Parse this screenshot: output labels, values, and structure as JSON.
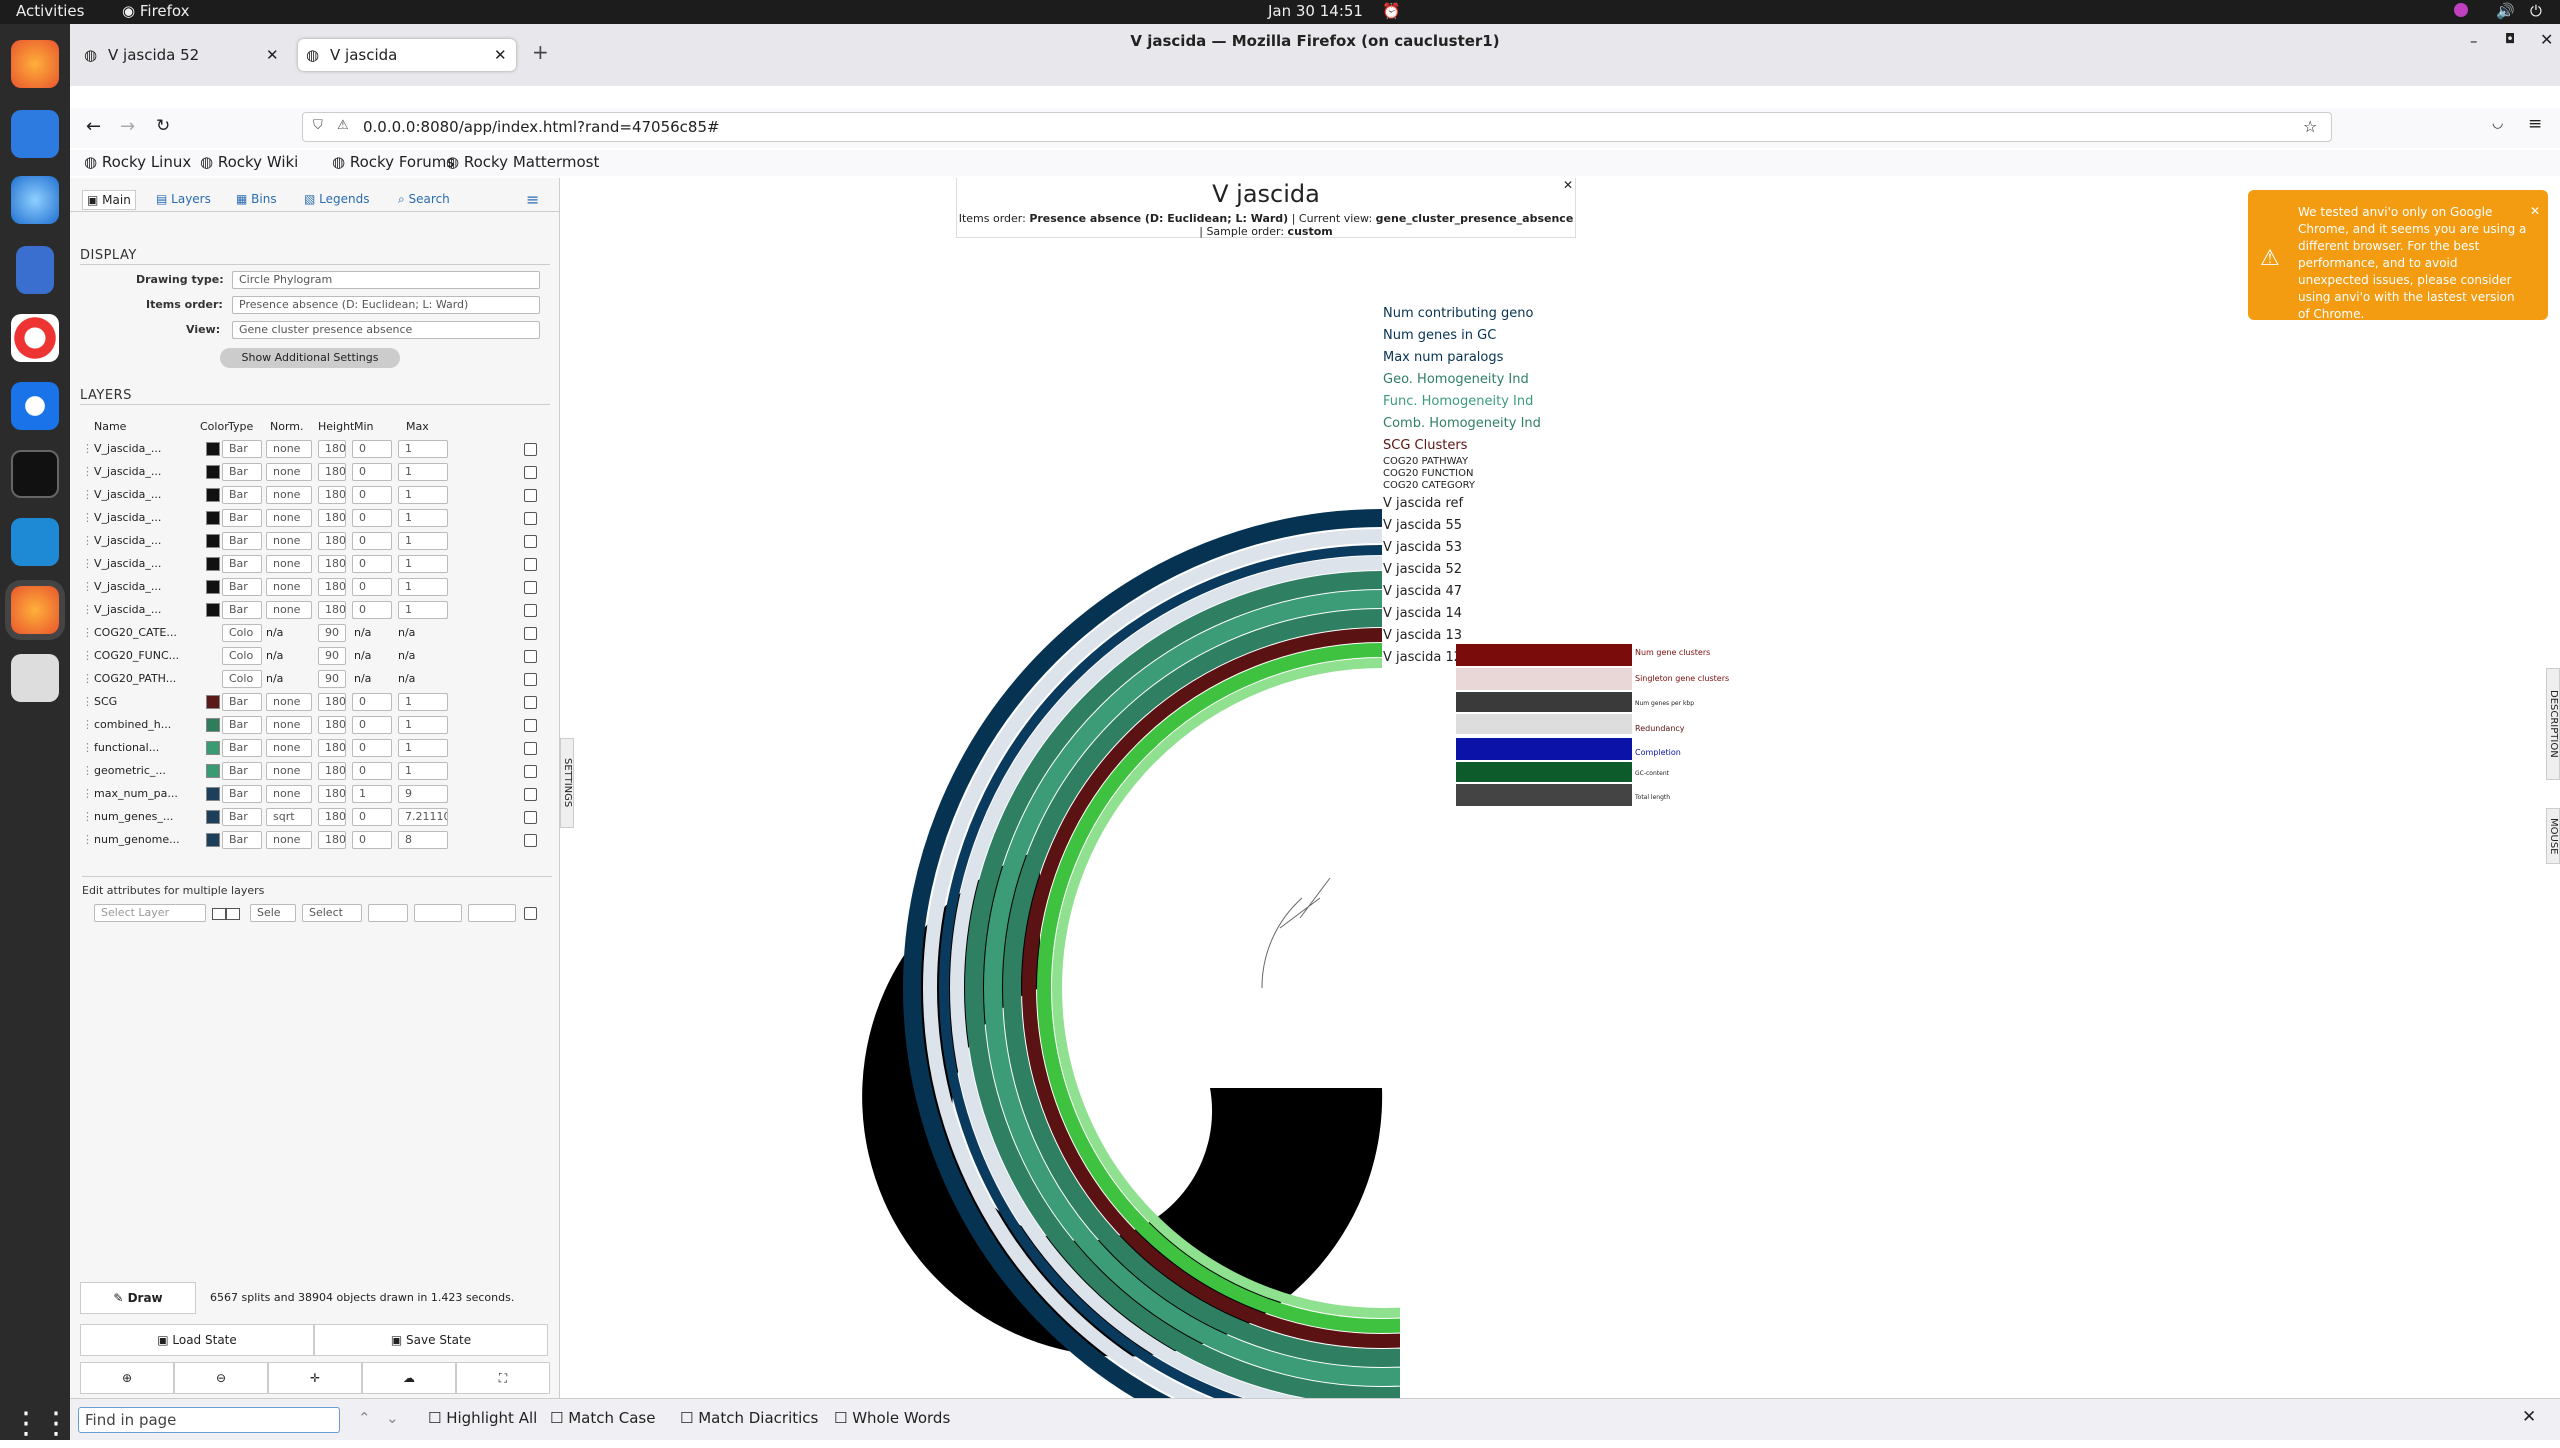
{
  "topbar": {
    "activities": "Activities",
    "app": "Firefox",
    "clock": "Jan 30  14:51"
  },
  "window": {
    "title": "V jascida — Mozilla Firefox (on caucluster1)"
  },
  "tabs": [
    {
      "label": "V jascida 52"
    },
    {
      "label": "V jascida"
    }
  ],
  "url": "0.0.0.0:8080/app/index.html?rand=47056c85#",
  "bookmarks": [
    "Rocky Linux",
    "Rocky Wiki",
    "Rocky Forums",
    "Rocky Mattermost"
  ],
  "panel": {
    "tabs": [
      "Main",
      "Layers",
      "Bins",
      "Legends",
      "Search"
    ],
    "display_header": "DISPLAY",
    "drawing_type_label": "Drawing type:",
    "drawing_type": "Circle Phylogram",
    "items_order_label": "Items order:",
    "items_order": "Presence absence (D: Euclidean; L: Ward)",
    "view_label": "View:",
    "view": "Gene cluster presence absence",
    "show_settings": "Show Additional Settings",
    "layers_header": "LAYERS",
    "cols": [
      "Name",
      "Color",
      "Type",
      "Norm.",
      "Height",
      "Min",
      "Max"
    ],
    "layers": [
      {
        "name": "V_jascida_...",
        "color": "#111111",
        "type": "Bar",
        "norm": "none",
        "height": "180",
        "min": "0",
        "max": "1"
      },
      {
        "name": "V_jascida_...",
        "color": "#111111",
        "type": "Bar",
        "norm": "none",
        "height": "180",
        "min": "0",
        "max": "1"
      },
      {
        "name": "V_jascida_...",
        "color": "#111111",
        "type": "Bar",
        "norm": "none",
        "height": "180",
        "min": "0",
        "max": "1"
      },
      {
        "name": "V_jascida_...",
        "color": "#111111",
        "type": "Bar",
        "norm": "none",
        "height": "180",
        "min": "0",
        "max": "1"
      },
      {
        "name": "V_jascida_...",
        "color": "#111111",
        "type": "Bar",
        "norm": "none",
        "height": "180",
        "min": "0",
        "max": "1"
      },
      {
        "name": "V_jascida_...",
        "color": "#111111",
        "type": "Bar",
        "norm": "none",
        "height": "180",
        "min": "0",
        "max": "1"
      },
      {
        "name": "V_jascida_...",
        "color": "#111111",
        "type": "Bar",
        "norm": "none",
        "height": "180",
        "min": "0",
        "max": "1"
      },
      {
        "name": "V_jascida_...",
        "color": "#111111",
        "type": "Bar",
        "norm": "none",
        "height": "180",
        "min": "0",
        "max": "1"
      },
      {
        "name": "COG20_CATE...",
        "color": "",
        "type": "Colo",
        "norm": "n/a",
        "height": "90",
        "min": "n/a",
        "max": "n/a"
      },
      {
        "name": "COG20_FUNC...",
        "color": "",
        "type": "Colo",
        "norm": "n/a",
        "height": "90",
        "min": "n/a",
        "max": "n/a"
      },
      {
        "name": "COG20_PATH...",
        "color": "",
        "type": "Colo",
        "norm": "n/a",
        "height": "90",
        "min": "n/a",
        "max": "n/a"
      },
      {
        "name": "SCG",
        "color": "#5a1a1a",
        "type": "Bar",
        "norm": "none",
        "height": "180",
        "min": "0",
        "max": "1"
      },
      {
        "name": "combined_h...",
        "color": "#2e7d5b",
        "type": "Bar",
        "norm": "none",
        "height": "180",
        "min": "0",
        "max": "1"
      },
      {
        "name": "functional...",
        "color": "#3a9a72",
        "type": "Bar",
        "norm": "none",
        "height": "180",
        "min": "0",
        "max": "1"
      },
      {
        "name": "geometric_...",
        "color": "#3a9a72",
        "type": "Bar",
        "norm": "none",
        "height": "180",
        "min": "0",
        "max": "1"
      },
      {
        "name": "max_num_pa...",
        "color": "#1c3f5c",
        "type": "Bar",
        "norm": "none",
        "height": "180",
        "min": "1",
        "max": "9"
      },
      {
        "name": "num_genes_...",
        "color": "#1c3f5c",
        "type": "Bar",
        "norm": "sqrt",
        "height": "180",
        "min": "0",
        "max": "7.21110"
      },
      {
        "name": "num_genome...",
        "color": "#1c3f5c",
        "type": "Bar",
        "norm": "none",
        "height": "180",
        "min": "0",
        "max": "8"
      }
    ],
    "multi_header": "Edit attributes for multiple layers",
    "select_layer_ph": "Select Layer",
    "sele": "Sele",
    "select": "Select",
    "draw": "Draw",
    "status": "6567 splits and 38904 objects drawn in 1.423 seconds.",
    "load_state": "Load State",
    "save_state": "Save State",
    "settings_tab": "SETTINGS"
  },
  "main": {
    "title": "V jascida",
    "sub_k1": "Items order: ",
    "sub_v1": "Presence absence (D: Euclidean; L: Ward)",
    "sub_k2": " | Current view: ",
    "sub_v2": "gene_cluster_presence_absence",
    "sub_k3": " | Sample order: ",
    "sub_v3": "custom",
    "layer_labels": [
      "Num contributing geno",
      "Num genes in GC",
      "Max num paralogs",
      "Geo. Homogeneity Ind",
      "Func. Homogeneity Ind",
      "Comb. Homogeneity Ind",
      "SCG Clusters",
      "COG20 PATHWAY",
      "COG20 FUNCTION",
      "COG20 CATEGORY",
      "V jascida ref",
      "V jascida 55",
      "V jascida 53",
      "V jascida 52",
      "V jascida 47",
      "V jascida 14",
      "V jascida 13",
      "V jascida 12"
    ],
    "sample_labels": [
      "Num gene clusters",
      "Singleton gene clusters",
      "Num genes per kbp",
      "Redundancy",
      "Completion",
      "GC-content",
      "Total length"
    ],
    "right_tabs": [
      "DESCRIPTION",
      "MOUSE"
    ]
  },
  "toast": {
    "text": "We tested anvi'o only on Google Chrome, and it seems you are using a different browser. For the best performance, and to avoid unexpected issues, please consider using anvi'o with the lastest version of Chrome."
  },
  "findbar": {
    "placeholder": "Find in page",
    "highlight": "Highlight All",
    "match_case": "Match Case",
    "diacritics": "Match Diacritics",
    "whole": "Whole Words"
  }
}
